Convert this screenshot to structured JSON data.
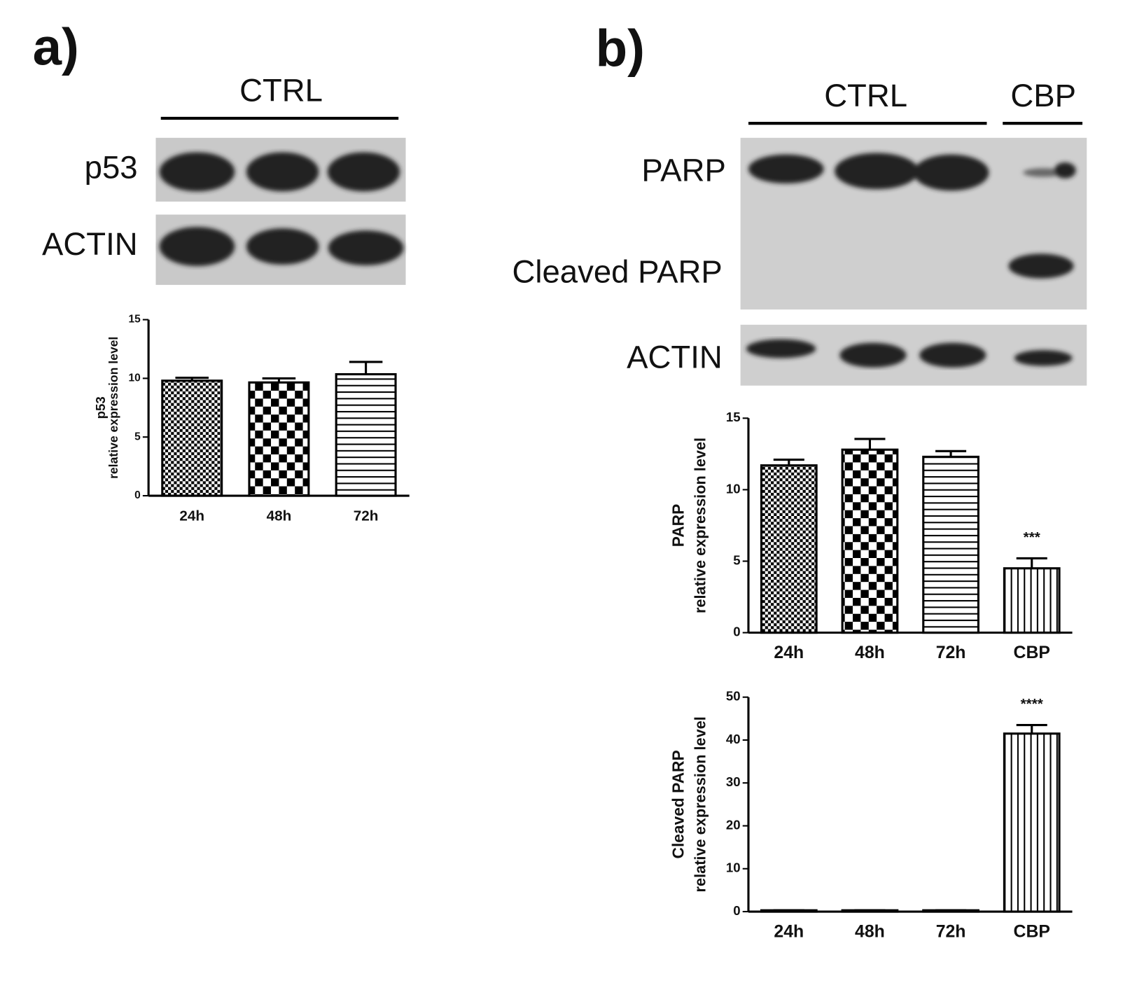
{
  "figure": {
    "panel_a": "a)",
    "panel_b": "b)"
  },
  "blots": {
    "a": {
      "header": "CTRL",
      "rows": [
        "p53",
        "ACTIN"
      ]
    },
    "b": {
      "headers": [
        "CTRL",
        "CBP"
      ],
      "rows": [
        "PARP",
        "Cleaved PARP",
        "ACTIN"
      ]
    }
  },
  "chart_data": [
    {
      "type": "bar",
      "ylabel": [
        "p53",
        "relative expression level"
      ],
      "categories": [
        "24h",
        "48h",
        "72h"
      ],
      "values": [
        9.8,
        9.65,
        10.35
      ],
      "errors": [
        0.25,
        0.35,
        1.05
      ],
      "ylim": [
        0,
        15
      ],
      "yticks": [
        0,
        5,
        10,
        15
      ],
      "color": "#000000"
    },
    {
      "type": "bar",
      "ylabel": [
        "PARP",
        "relative expression level"
      ],
      "categories": [
        "24h",
        "48h",
        "72h",
        "CBP"
      ],
      "values": [
        11.7,
        12.8,
        12.3,
        4.5
      ],
      "errors": [
        0.4,
        0.75,
        0.4,
        0.7
      ],
      "annotations": [
        null,
        null,
        null,
        "***"
      ],
      "ylim": [
        0,
        15
      ],
      "yticks": [
        0,
        5,
        10,
        15
      ],
      "color": "#000000"
    },
    {
      "type": "bar",
      "ylabel": [
        "Cleaved PARP",
        "relative expression level"
      ],
      "categories": [
        "24h",
        "48h",
        "72h",
        "CBP"
      ],
      "values": [
        0.3,
        0.3,
        0.3,
        41.5
      ],
      "errors": [
        0,
        0,
        0,
        2
      ],
      "annotations": [
        null,
        null,
        null,
        "****"
      ],
      "ylim": [
        0,
        50
      ],
      "yticks": [
        0,
        10,
        20,
        30,
        40,
        50
      ],
      "color": "#000000"
    }
  ]
}
